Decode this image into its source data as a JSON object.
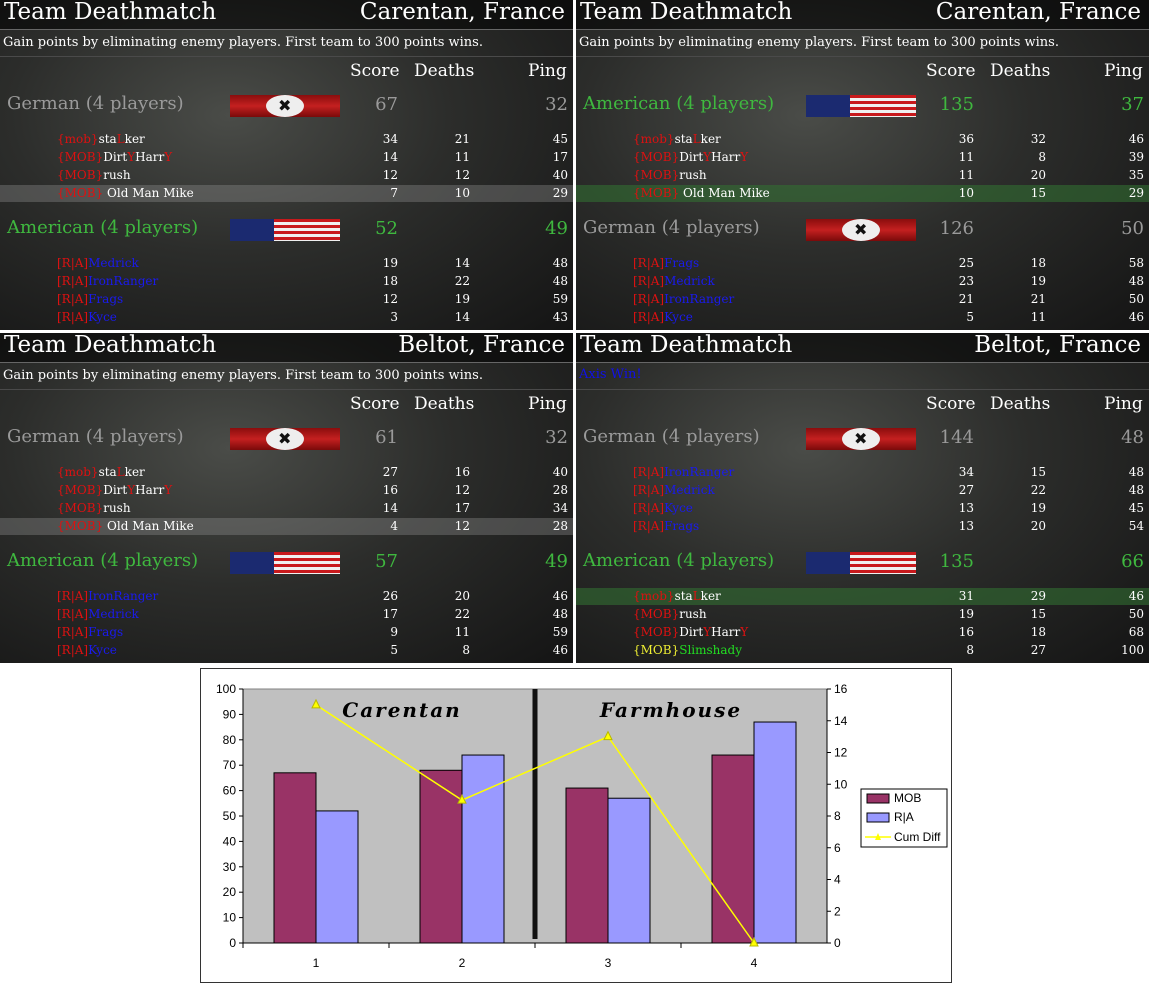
{
  "panels": [
    {
      "mode": "Team Deathmatch",
      "map": "Carentan, France",
      "desc": "Gain points by eliminating enemy players. First team to 300 points wins.",
      "cols": [
        "Score",
        "Deaths",
        "Ping"
      ],
      "teams": [
        {
          "name": "German (4 players)",
          "flag": "german-flag",
          "color": "grey",
          "score": "67",
          "ping": "32",
          "players": [
            {
              "tag": "{mob}",
              "name": "sta",
              "caps": "L",
              "rest": "ker",
              "score": "34",
              "deaths": "21",
              "ping": "45"
            },
            {
              "tag": "{MOB}",
              "name": "Dirt",
              "caps": "Y",
              "rest": "Harr",
              "caps2": "Y",
              "score": "14",
              "deaths": "11",
              "ping": "17"
            },
            {
              "tag": "{MOB}",
              "name": "rush",
              "score": "12",
              "deaths": "12",
              "ping": "40"
            },
            {
              "tag": "{MOB}",
              "name": " Old Man Mike",
              "score": "7",
              "deaths": "10",
              "ping": "29",
              "hl": "grey"
            }
          ]
        },
        {
          "name": "American (4 players)",
          "flag": "american-flag",
          "color": "green",
          "score": "52",
          "ping": "49",
          "players": [
            {
              "tag": "[R|A]",
              "name": "Medrick",
              "score": "19",
              "deaths": "14",
              "ping": "48"
            },
            {
              "tag": "[R|A]",
              "name": "IronRanger",
              "score": "18",
              "deaths": "22",
              "ping": "48"
            },
            {
              "tag": "[R|A]",
              "name": "Frags",
              "score": "12",
              "deaths": "19",
              "ping": "59"
            },
            {
              "tag": "[R|A]",
              "name": "Kyce",
              "score": "3",
              "deaths": "14",
              "ping": "43"
            }
          ]
        }
      ]
    },
    {
      "mode": "Team Deathmatch",
      "map": "Carentan, France",
      "desc": "Gain points by eliminating enemy players. First team to 300 points wins.",
      "cols": [
        "Score",
        "Deaths",
        "Ping"
      ],
      "teams": [
        {
          "name": "American (4 players)",
          "flag": "american-flag",
          "color": "green",
          "score": "135",
          "ping": "37",
          "players": [
            {
              "tag": "{mob}",
              "name": "sta",
              "caps": "L",
              "rest": "ker",
              "score": "36",
              "deaths": "32",
              "ping": "46"
            },
            {
              "tag": "{MOB}",
              "name": "Dirt",
              "caps": "Y",
              "rest": "Harr",
              "caps2": "Y",
              "score": "11",
              "deaths": "8",
              "ping": "39"
            },
            {
              "tag": "{MOB}",
              "name": "rush",
              "score": "11",
              "deaths": "20",
              "ping": "35"
            },
            {
              "tag": "{MOB}",
              "name": " Old Man Mike",
              "score": "10",
              "deaths": "15",
              "ping": "29",
              "hl": "green"
            }
          ]
        },
        {
          "name": "German (4 players)",
          "flag": "german-flag",
          "color": "grey",
          "score": "126",
          "ping": "50",
          "players": [
            {
              "tag": "[R|A]",
              "name": "Frags",
              "score": "25",
              "deaths": "18",
              "ping": "58"
            },
            {
              "tag": "[R|A]",
              "name": "Medrick",
              "score": "23",
              "deaths": "19",
              "ping": "48"
            },
            {
              "tag": "[R|A]",
              "name": "IronRanger",
              "score": "21",
              "deaths": "21",
              "ping": "50"
            },
            {
              "tag": "[R|A]",
              "name": "Kyce",
              "score": "5",
              "deaths": "11",
              "ping": "46"
            }
          ]
        }
      ]
    },
    {
      "mode": "Team Deathmatch",
      "map": "Beltot, France",
      "desc": "Gain points by eliminating enemy players. First team to 300 points wins.",
      "cols": [
        "Score",
        "Deaths",
        "Ping"
      ],
      "teams": [
        {
          "name": "German (4 players)",
          "flag": "german-flag",
          "color": "grey",
          "score": "61",
          "ping": "32",
          "players": [
            {
              "tag": "{mob}",
              "name": "sta",
              "caps": "L",
              "rest": "ker",
              "score": "27",
              "deaths": "16",
              "ping": "40"
            },
            {
              "tag": "{MOB}",
              "name": "Dirt",
              "caps": "Y",
              "rest": "Harr",
              "caps2": "Y",
              "score": "16",
              "deaths": "12",
              "ping": "28"
            },
            {
              "tag": "{MOB}",
              "name": "rush",
              "score": "14",
              "deaths": "17",
              "ping": "34"
            },
            {
              "tag": "{MOB}",
              "name": " Old Man Mike",
              "score": "4",
              "deaths": "12",
              "ping": "28",
              "hl": "grey"
            }
          ]
        },
        {
          "name": "American (4 players)",
          "flag": "american-flag",
          "color": "green",
          "score": "57",
          "ping": "49",
          "players": [
            {
              "tag": "[R|A]",
              "name": "IronRanger",
              "score": "26",
              "deaths": "20",
              "ping": "46"
            },
            {
              "tag": "[R|A]",
              "name": "Medrick",
              "score": "17",
              "deaths": "22",
              "ping": "48"
            },
            {
              "tag": "[R|A]",
              "name": "Frags",
              "score": "9",
              "deaths": "11",
              "ping": "59"
            },
            {
              "tag": "[R|A]",
              "name": "Kyce",
              "score": "5",
              "deaths": "8",
              "ping": "46"
            }
          ]
        }
      ]
    },
    {
      "mode": "Team Deathmatch",
      "map": "Beltot, France",
      "winner": "Axis Win!",
      "cols": [
        "Score",
        "Deaths",
        "Ping"
      ],
      "teams": [
        {
          "name": "German (4 players)",
          "flag": "german-flag",
          "color": "grey",
          "score": "144",
          "ping": "48",
          "players": [
            {
              "tag": "[R|A]",
              "name": "IronRanger",
              "score": "34",
              "deaths": "15",
              "ping": "48"
            },
            {
              "tag": "[R|A]",
              "name": "Medrick",
              "score": "27",
              "deaths": "22",
              "ping": "48"
            },
            {
              "tag": "[R|A]",
              "name": "Kyce",
              "score": "13",
              "deaths": "19",
              "ping": "45"
            },
            {
              "tag": "[R|A]",
              "name": "Frags",
              "score": "13",
              "deaths": "20",
              "ping": "54"
            }
          ]
        },
        {
          "name": "American (4 players)",
          "flag": "american-flag",
          "color": "green",
          "score": "135",
          "ping": "66",
          "players": [
            {
              "tag": "{mob}",
              "name": "sta",
              "caps": "L",
              "rest": "ker",
              "score": "31",
              "deaths": "29",
              "ping": "46",
              "hl": "green"
            },
            {
              "tag": "{MOB}",
              "name": "rush",
              "score": "19",
              "deaths": "15",
              "ping": "50"
            },
            {
              "tag": "{MOB}",
              "name": "Dirt",
              "caps": "Y",
              "rest": "Harr",
              "caps2": "Y",
              "score": "16",
              "deaths": "18",
              "ping": "68"
            },
            {
              "tag": "{MOB}",
              "name": "Slimshady",
              "score": "8",
              "deaths": "27",
              "ping": "100",
              "special": "slim"
            }
          ]
        }
      ]
    }
  ],
  "colors": {
    "mob_bar": "#993366",
    "ra_bar": "#9999ff",
    "cum_line": "#ffff00",
    "plot_bg": "#c0c0c0"
  },
  "chart_data": {
    "type": "bar",
    "categories": [
      "1",
      "2",
      "3",
      "4"
    ],
    "series": [
      {
        "name": "MOB",
        "type": "bar",
        "axis": "left",
        "values": [
          67,
          68,
          61,
          74
        ]
      },
      {
        "name": "R|A",
        "type": "bar",
        "axis": "left",
        "values": [
          52,
          74,
          57,
          87
        ]
      },
      {
        "name": "Cum Diff",
        "type": "line",
        "axis": "right",
        "values": [
          15,
          9,
          13,
          0
        ]
      }
    ],
    "ylim": [
      0,
      100
    ],
    "y2lim": [
      0,
      16
    ],
    "yticks": [
      "0",
      "10",
      "20",
      "30",
      "40",
      "50",
      "60",
      "70",
      "80",
      "90",
      "100"
    ],
    "y2ticks": [
      "0",
      "2",
      "4",
      "6",
      "8",
      "10",
      "12",
      "14",
      "16"
    ],
    "annotations": [
      "Carentan",
      "Farmhouse"
    ],
    "legend": "right",
    "grid": false
  }
}
